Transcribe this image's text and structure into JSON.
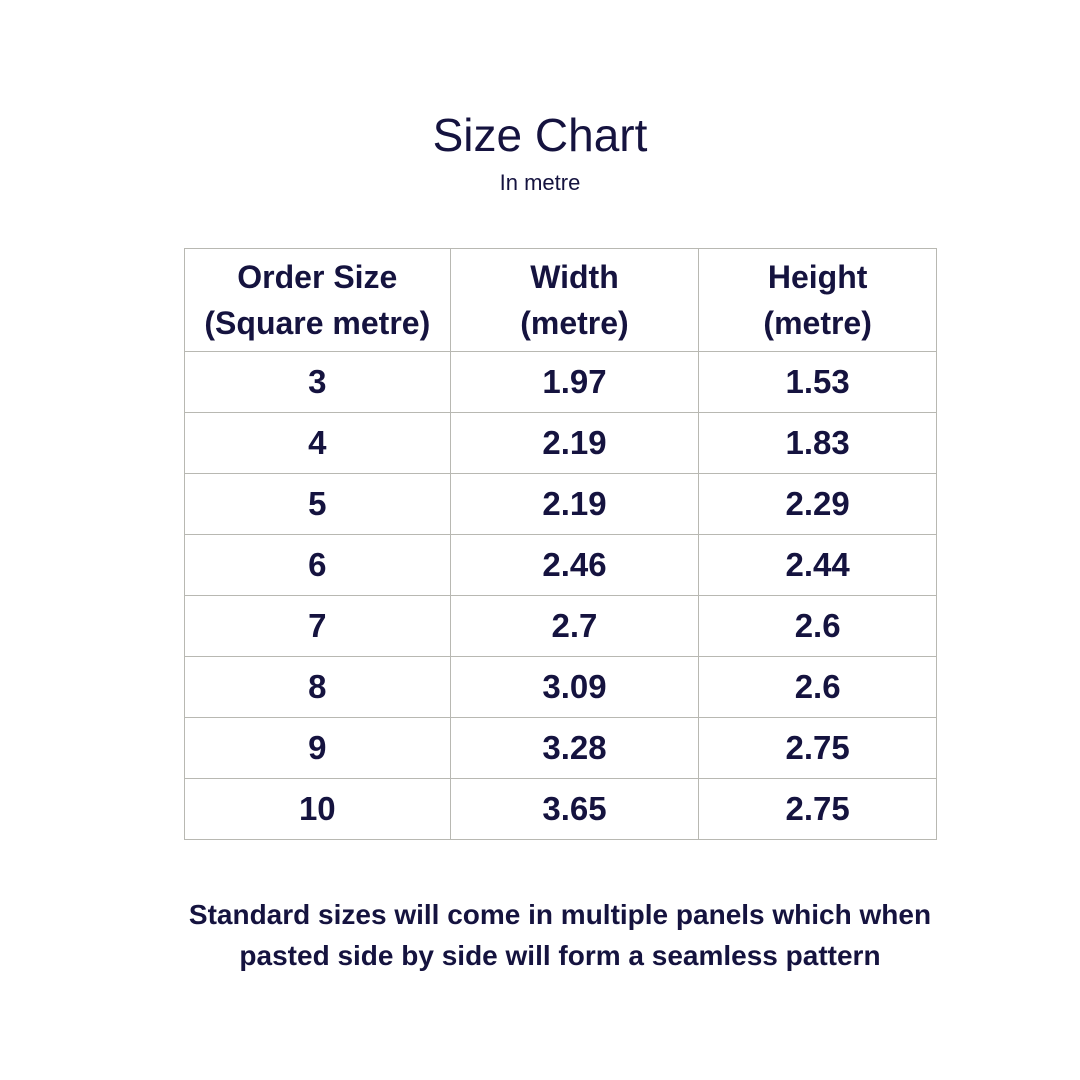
{
  "title": "Size Chart",
  "subtitle": "In metre",
  "table": {
    "headers": [
      [
        "Order Size",
        "(Square metre)"
      ],
      [
        "Width",
        "(metre)"
      ],
      [
        "Height",
        "(metre)"
      ]
    ],
    "rows": [
      [
        "3",
        "1.97",
        "1.53"
      ],
      [
        "4",
        "2.19",
        "1.83"
      ],
      [
        "5",
        "2.19",
        "2.29"
      ],
      [
        "6",
        "2.46",
        "2.44"
      ],
      [
        "7",
        "2.7",
        "2.6"
      ],
      [
        "8",
        "3.09",
        "2.6"
      ],
      [
        "9",
        "3.28",
        "2.75"
      ],
      [
        "10",
        "3.65",
        "2.75"
      ]
    ]
  },
  "note": {
    "line1": "Standard sizes  will come in multiple panels which when",
    "line2": "pasted side by side will form a seamless pattern"
  },
  "colors": {
    "text": "#15133f",
    "border": "#b8b8b2",
    "background": "#ffffff"
  }
}
